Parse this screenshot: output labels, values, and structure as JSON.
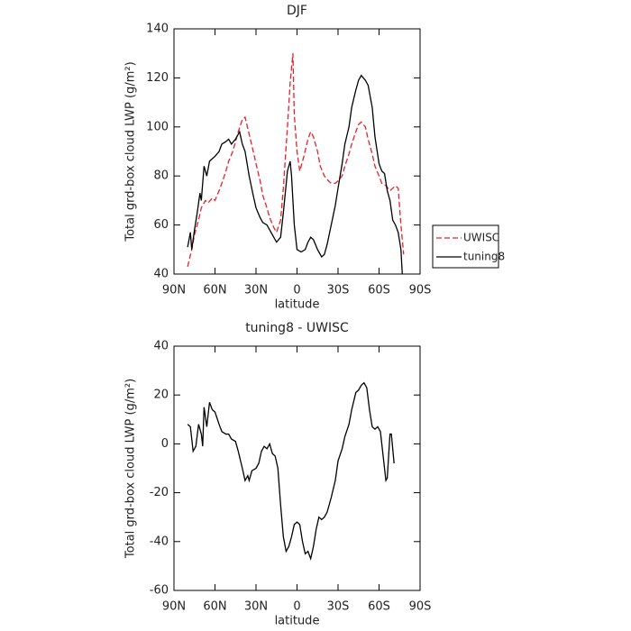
{
  "chart_data": [
    {
      "type": "line",
      "title": "DJF",
      "xlabel": "latitude",
      "ylabel": "Total grd-box cloud LWP (g/m²)",
      "xlim": [
        90,
        -90
      ],
      "ylim": [
        40,
        140
      ],
      "xticks": [
        {
          "value": 90,
          "label": "90N"
        },
        {
          "value": 60,
          "label": "60N"
        },
        {
          "value": 30,
          "label": "30N"
        },
        0,
        {
          "value": -30,
          "label": "30S"
        },
        {
          "value": -60,
          "label": "60S"
        },
        {
          "value": -90,
          "label": "90S"
        }
      ],
      "yticks": [
        40,
        60,
        80,
        100,
        120,
        140
      ],
      "legend": "right",
      "series": [
        {
          "name": "UWISC",
          "color": "#e8202a",
          "linestyle": "dashed",
          "x": [
            80,
            77,
            75,
            72,
            70,
            67,
            65,
            62,
            60,
            57,
            55,
            52,
            50,
            47,
            45,
            43,
            40,
            38,
            35,
            32,
            30,
            27,
            25,
            22,
            20,
            17,
            15,
            12,
            10,
            7,
            5,
            3,
            2,
            0,
            -2,
            -5,
            -8,
            -10,
            -12,
            -15,
            -17,
            -20,
            -23,
            -25,
            -28,
            -30,
            -33,
            -35,
            -38,
            -40,
            -43,
            -45,
            -47,
            -50,
            -52,
            -55,
            -57,
            -60,
            -62,
            -65,
            -68,
            -70,
            -72,
            -74,
            -76,
            -78
          ],
          "values": [
            43,
            50,
            56,
            62,
            67,
            70,
            69,
            71,
            70,
            74,
            77,
            82,
            86,
            90,
            94,
            98,
            103,
            104,
            97,
            90,
            85,
            78,
            72,
            67,
            63,
            59,
            57,
            62,
            75,
            100,
            118,
            130,
            105,
            90,
            82,
            88,
            95,
            98,
            96,
            90,
            84,
            80,
            78,
            77,
            77,
            78,
            80,
            84,
            89,
            93,
            98,
            101,
            102,
            100,
            95,
            89,
            84,
            80,
            77,
            76,
            74,
            75,
            76,
            75,
            60,
            48
          ]
        },
        {
          "name": "tuning8",
          "color": "#000000",
          "linestyle": "solid",
          "x": [
            80,
            78,
            77,
            75,
            73,
            71,
            70,
            68,
            66,
            64,
            62,
            60,
            57,
            55,
            52,
            50,
            48,
            45,
            42,
            40,
            38,
            35,
            32,
            30,
            27,
            25,
            22,
            20,
            17,
            15,
            12,
            10,
            7,
            5,
            4,
            2,
            0,
            -3,
            -6,
            -8,
            -10,
            -12,
            -15,
            -18,
            -20,
            -22,
            -25,
            -28,
            -30,
            -33,
            -35,
            -38,
            -40,
            -43,
            -45,
            -47,
            -50,
            -52,
            -55,
            -57,
            -60,
            -62,
            -64,
            -66,
            -68,
            -70,
            -72,
            -74,
            -76,
            -77
          ],
          "values": [
            51,
            57,
            50,
            58,
            65,
            73,
            70,
            84,
            80,
            86,
            87,
            88,
            90,
            93,
            94,
            95,
            93,
            95,
            98,
            93,
            90,
            80,
            72,
            67,
            63,
            61,
            60,
            58,
            55,
            53,
            55,
            65,
            82,
            86,
            80,
            60,
            50,
            49,
            50,
            53,
            55,
            54,
            50,
            47,
            48,
            52,
            60,
            68,
            75,
            85,
            93,
            100,
            108,
            115,
            119,
            121,
            119,
            117,
            108,
            96,
            85,
            82,
            81,
            74,
            70,
            62,
            60,
            57,
            50,
            40
          ]
        }
      ]
    },
    {
      "type": "line",
      "title": "tuning8 - UWISC",
      "xlabel": "latitude",
      "ylabel": "Total grd-box cloud LWP (g/m²)",
      "xlim": [
        90,
        -90
      ],
      "ylim": [
        -60,
        40
      ],
      "xticks": [
        {
          "value": 90,
          "label": "90N"
        },
        {
          "value": 60,
          "label": "60N"
        },
        {
          "value": 30,
          "label": "30N"
        },
        0,
        {
          "value": -30,
          "label": "30S"
        },
        {
          "value": -60,
          "label": "60S"
        },
        {
          "value": -90,
          "label": "90S"
        }
      ],
      "yticks": [
        -60,
        -40,
        -20,
        0,
        20,
        40
      ],
      "series": [
        {
          "color": "#000000",
          "linestyle": "solid",
          "x": [
            80,
            78,
            76,
            74,
            72,
            70,
            69,
            68,
            66,
            64,
            62,
            60,
            57,
            55,
            52,
            50,
            48,
            45,
            43,
            40,
            38,
            36,
            35,
            33,
            30,
            28,
            26,
            24,
            22,
            20,
            18,
            16,
            14,
            12,
            10,
            8,
            6,
            4,
            2,
            0,
            -2,
            -4,
            -6,
            -8,
            -10,
            -12,
            -14,
            -16,
            -18,
            -20,
            -22,
            -25,
            -28,
            -30,
            -33,
            -35,
            -38,
            -40,
            -43,
            -45,
            -47,
            -49,
            -51,
            -53,
            -55,
            -57,
            -59,
            -61,
            -63,
            -65,
            -66,
            -68,
            -69,
            -71
          ],
          "values": [
            8,
            7,
            -3,
            -1,
            8,
            4,
            -1,
            15,
            7,
            17,
            14,
            13,
            8,
            5,
            4,
            4,
            2,
            1,
            -3,
            -10,
            -15,
            -13,
            -15,
            -11,
            -10,
            -8,
            -3,
            -1,
            -2,
            0,
            -4,
            -5,
            -10,
            -25,
            -38,
            -44,
            -42,
            -38,
            -33,
            -32,
            -33,
            -40,
            -45,
            -44,
            -47,
            -42,
            -35,
            -30,
            -31,
            -30,
            -28,
            -22,
            -15,
            -7,
            -2,
            3,
            8,
            14,
            21,
            22,
            24,
            25,
            23,
            14,
            7,
            6,
            7,
            5,
            -5,
            -15,
            -14,
            4,
            4,
            -8
          ]
        }
      ]
    }
  ]
}
